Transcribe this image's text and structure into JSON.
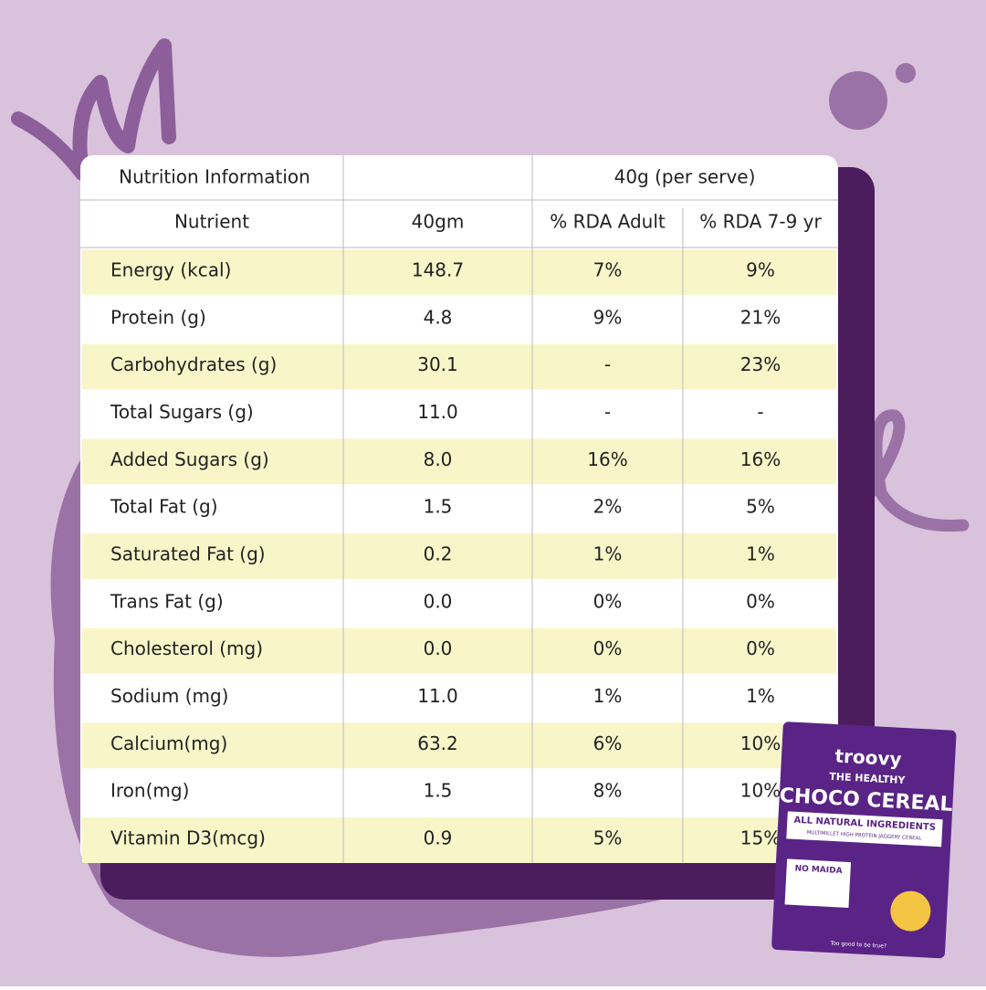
{
  "table": {
    "title": "Nutrition Information",
    "serve": "40g (per serve)",
    "columns": [
      "Nutrient",
      "40gm",
      "% RDA Adult",
      "% RDA 7-9 yr"
    ],
    "rows": [
      [
        "Energy (kcal)",
        "148.7",
        "7%",
        "9%"
      ],
      [
        "Protein (g)",
        "4.8",
        "9%",
        "21%"
      ],
      [
        "Carbohydrates (g)",
        "30.1",
        "-",
        "23%"
      ],
      [
        "Total Sugars (g)",
        "11.0",
        "-",
        "-"
      ],
      [
        "Added Sugars (g)",
        "8.0",
        "16%",
        "16%"
      ],
      [
        "Total Fat (g)",
        "1.5",
        "2%",
        "5%"
      ],
      [
        "Saturated Fat (g)",
        "0.2",
        "1%",
        "1%"
      ],
      [
        "Trans Fat (g)",
        "0.0",
        "0%",
        "0%"
      ],
      [
        "Cholesterol (mg)",
        "0.0",
        "0%",
        "0%"
      ],
      [
        "Sodium (mg)",
        "11.0",
        "1%",
        "1%"
      ],
      [
        "Calcium(mg)",
        "63.2",
        "6%",
        "10%"
      ],
      [
        "Iron(mg)",
        "1.5",
        "8%",
        "10%"
      ],
      [
        "Vitamin D3(mcg)",
        "0.9",
        "5%",
        "15%"
      ]
    ]
  },
  "package": {
    "brand": "troovy",
    "line": "THE HEALTHY",
    "name": "CHOCO CEREAL",
    "claim": "ALL NATURAL INGREDIENTS",
    "sub": "MULTIMILLET HIGH PROTEIN JAGGERY CEREAL",
    "badge": "NO MAIDA",
    "tagline": "Too good to be true?"
  }
}
